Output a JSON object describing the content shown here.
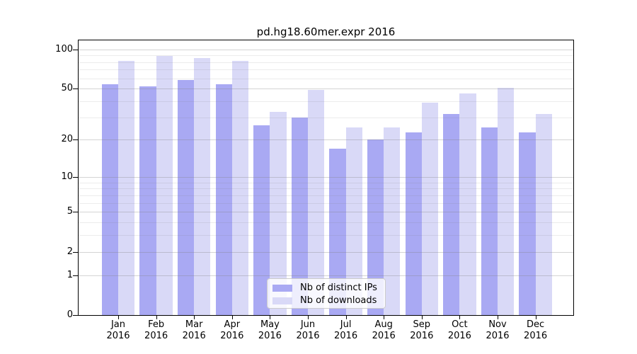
{
  "chart_data": {
    "type": "bar",
    "title": "pd.hg18.60mer.expr 2016",
    "categories": [
      "Jan",
      "Feb",
      "Mar",
      "Apr",
      "May",
      "Jun",
      "Jul",
      "Aug",
      "Sep",
      "Oct",
      "Nov",
      "Dec"
    ],
    "category_year": "2016",
    "series": [
      {
        "name": "Nb of distinct IPs",
        "color": "#a9a9f3",
        "values": [
          54,
          52,
          58,
          54,
          26,
          30,
          17,
          20,
          23,
          32,
          25,
          23
        ]
      },
      {
        "name": "Nb of downloads",
        "color": "#d9d9f7",
        "values": [
          82,
          89,
          86,
          82,
          33,
          49,
          25,
          25,
          39,
          46,
          51,
          32
        ]
      }
    ],
    "y_axis": {
      "scale": "log10(1+value)",
      "ticks": [
        0,
        1,
        2,
        5,
        10,
        20,
        50,
        100
      ],
      "minor_gridlines": [
        3,
        4,
        6,
        7,
        8,
        9,
        30,
        40,
        60,
        70,
        80,
        90
      ],
      "max": 117
    },
    "xlabel": "",
    "ylabel": "",
    "grid": "horizontal",
    "legend_position": "bottom-center"
  }
}
